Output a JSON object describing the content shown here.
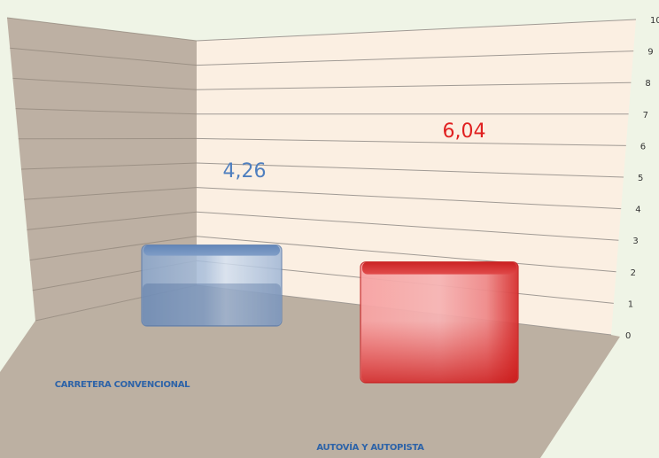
{
  "chart_data": {
    "type": "bar",
    "categories": [
      "CARRETERA CONVENCIONAL",
      "AUTOVÍA Y AUTOPISTA"
    ],
    "values": [
      4.26,
      6.04
    ],
    "value_labels": [
      "4,26",
      "6,04"
    ],
    "ylim": [
      0,
      10
    ],
    "yticks": [
      "0",
      "1",
      "2",
      "3",
      "4",
      "5",
      "6",
      "7",
      "8",
      "9",
      "10"
    ],
    "grid": true,
    "title": "",
    "xlabel": "",
    "ylabel": "",
    "colors": {
      "series": [
        "#8fa9cc",
        "#e24b4b"
      ],
      "value_label_colors": [
        "#4f7fbf",
        "#e02020"
      ],
      "back_wall": "#fbefe2",
      "side_wall": "#bdb0a3",
      "floor": "#bcb0a2",
      "background": "#eff4e6",
      "category_label": "#2d63a8"
    }
  }
}
